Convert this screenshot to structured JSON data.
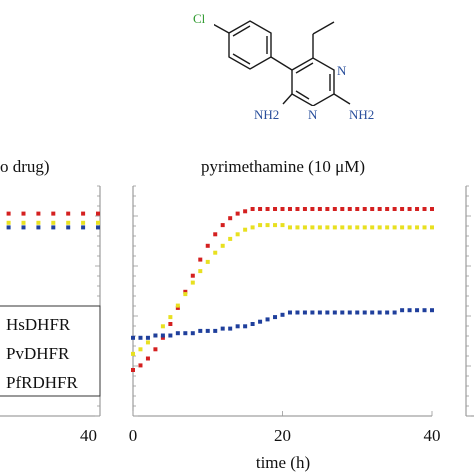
{
  "molecule": {
    "atoms": {
      "cl": "Cl",
      "n_top": "N",
      "n_bottom": "N",
      "nh2_left": "NH2",
      "nh2_right": "NH2"
    },
    "colors": {
      "chlorine": "#2e9a2e",
      "nitrogen": "#2a4f9c",
      "bond": "#1a1a1a"
    }
  },
  "chart_data": [
    {
      "type": "scatter",
      "title": "o drug)",
      "x_tick_labels": [
        "40"
      ],
      "xlabel": "",
      "ylabel": "",
      "xlim": [
        0,
        40
      ],
      "legend": {
        "placement": "bottom-left",
        "entries": [
          "HsDHFR",
          "PvDHFR",
          "PfRDHFR"
        ]
      },
      "series": [
        {
          "key": "red",
          "color": "#d42020",
          "x": [
            20,
            22,
            24,
            26,
            28,
            30,
            32,
            34,
            36,
            38,
            40
          ],
          "y": [
            0.88,
            0.88,
            0.88,
            0.88,
            0.88,
            0.88,
            0.88,
            0.88,
            0.88,
            0.88,
            0.88
          ]
        },
        {
          "key": "yellow",
          "color": "#e8e020",
          "x": [
            20,
            22,
            24,
            26,
            28,
            30,
            32,
            34,
            36,
            38,
            40
          ],
          "y": [
            0.84,
            0.84,
            0.84,
            0.84,
            0.84,
            0.84,
            0.84,
            0.84,
            0.84,
            0.84,
            0.84
          ]
        },
        {
          "key": "blue",
          "color": "#1f3f9c",
          "x": [
            20,
            22,
            24,
            26,
            28,
            30,
            32,
            34,
            36,
            38,
            40
          ],
          "y": [
            0.82,
            0.82,
            0.82,
            0.82,
            0.82,
            0.82,
            0.82,
            0.82,
            0.82,
            0.82,
            0.82
          ]
        }
      ]
    },
    {
      "type": "scatter",
      "title": "pyrimethamine (10 μM)",
      "x_tick_labels": [
        "0",
        "20",
        "40"
      ],
      "x_ticks": [
        0,
        20,
        40
      ],
      "xlabel": "time (h)",
      "ylabel": "",
      "xlim": [
        0,
        40
      ],
      "ylim": [
        0,
        1
      ],
      "series": [
        {
          "key": "red",
          "color": "#d42020",
          "x": [
            0,
            1,
            2,
            3,
            4,
            5,
            6,
            7,
            8,
            9,
            10,
            11,
            12,
            13,
            14,
            15,
            16,
            17,
            18,
            19,
            20,
            21,
            22,
            23,
            24,
            25,
            26,
            27,
            28,
            29,
            30,
            31,
            32,
            33,
            34,
            35,
            36,
            37,
            38,
            39,
            40
          ],
          "y": [
            0.2,
            0.22,
            0.25,
            0.29,
            0.34,
            0.4,
            0.47,
            0.54,
            0.61,
            0.68,
            0.74,
            0.79,
            0.83,
            0.86,
            0.88,
            0.89,
            0.9,
            0.9,
            0.9,
            0.9,
            0.9,
            0.9,
            0.9,
            0.9,
            0.9,
            0.9,
            0.9,
            0.9,
            0.9,
            0.9,
            0.9,
            0.9,
            0.9,
            0.9,
            0.9,
            0.9,
            0.9,
            0.9,
            0.9,
            0.9,
            0.9
          ]
        },
        {
          "key": "yellow",
          "color": "#e8e020",
          "x": [
            0,
            1,
            2,
            3,
            4,
            5,
            6,
            7,
            8,
            9,
            10,
            11,
            12,
            13,
            14,
            15,
            16,
            17,
            18,
            19,
            20,
            21,
            22,
            23,
            24,
            25,
            26,
            27,
            28,
            29,
            30,
            31,
            32,
            33,
            34,
            35,
            36,
            37,
            38,
            39,
            40
          ],
          "y": [
            0.27,
            0.29,
            0.32,
            0.35,
            0.39,
            0.43,
            0.48,
            0.53,
            0.58,
            0.63,
            0.67,
            0.71,
            0.74,
            0.77,
            0.79,
            0.81,
            0.82,
            0.83,
            0.83,
            0.83,
            0.83,
            0.82,
            0.82,
            0.82,
            0.82,
            0.82,
            0.82,
            0.82,
            0.82,
            0.82,
            0.82,
            0.82,
            0.82,
            0.82,
            0.82,
            0.82,
            0.82,
            0.82,
            0.82,
            0.82,
            0.82
          ]
        },
        {
          "key": "blue",
          "color": "#1f3f9c",
          "x": [
            0,
            1,
            2,
            3,
            4,
            5,
            6,
            7,
            8,
            9,
            10,
            11,
            12,
            13,
            14,
            15,
            16,
            17,
            18,
            19,
            20,
            21,
            22,
            23,
            24,
            25,
            26,
            27,
            28,
            29,
            30,
            31,
            32,
            33,
            34,
            35,
            36,
            37,
            38,
            39,
            40
          ],
          "y": [
            0.34,
            0.34,
            0.34,
            0.35,
            0.35,
            0.35,
            0.36,
            0.36,
            0.36,
            0.37,
            0.37,
            0.37,
            0.38,
            0.38,
            0.39,
            0.39,
            0.4,
            0.41,
            0.42,
            0.43,
            0.44,
            0.45,
            0.45,
            0.45,
            0.45,
            0.45,
            0.45,
            0.45,
            0.45,
            0.45,
            0.45,
            0.45,
            0.45,
            0.45,
            0.45,
            0.45,
            0.46,
            0.46,
            0.46,
            0.46,
            0.46
          ]
        }
      ]
    }
  ]
}
